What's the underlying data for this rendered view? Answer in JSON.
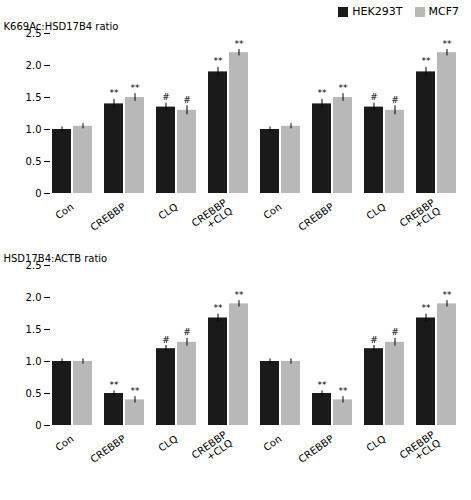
{
  "chart_data": [
    {
      "type": "bar",
      "ylabel": "K669Ac:HSD17B4 ratio",
      "categories": [
        "Con",
        "CREBBP",
        "CLQ",
        "CREBBP\n+CLQ",
        "Con",
        "CREBBP",
        "CLQ",
        "CREBBP\n+CLQ"
      ],
      "series": [
        {
          "name": "HEK293T",
          "color": "#1a1a1a",
          "values": [
            1.0,
            1.4,
            1.35,
            1.9,
            1.0,
            1.4,
            1.35,
            1.9
          ],
          "errors": [
            0.04,
            0.07,
            0.06,
            0.07,
            0.04,
            0.07,
            0.06,
            0.07
          ],
          "significance": [
            null,
            "**",
            "#",
            "**",
            null,
            "**",
            "#",
            "**"
          ]
        },
        {
          "name": "MCF7",
          "color": "#b8b8b8",
          "values": [
            1.05,
            1.5,
            1.3,
            2.2,
            1.05,
            1.5,
            1.3,
            2.2
          ],
          "errors": [
            0.04,
            0.06,
            0.07,
            0.05,
            0.04,
            0.06,
            0.07,
            0.05
          ],
          "significance": [
            null,
            "**",
            "#",
            "**",
            null,
            "**",
            "#",
            "**"
          ]
        }
      ],
      "ylim": [
        0,
        2.5
      ],
      "yticks": [
        0,
        0.5,
        {
          "value": 1.0,
          "label": "1.0"
        },
        1.5,
        {
          "value": 2.0,
          "label": "2.0"
        },
        2.5
      ],
      "legend": "upper right",
      "grid": false
    },
    {
      "type": "bar",
      "ylabel": "HSD17B4:ACTB ratio",
      "categories": [
        "Con",
        "CREBBP",
        "CLQ",
        "CREBBP\n+CLQ",
        "Con",
        "CREBBP",
        "CLQ",
        "CREBBP\n+CLQ"
      ],
      "series": [
        {
          "name": "HEK293T",
          "color": "#1a1a1a",
          "values": [
            1.0,
            0.5,
            1.2,
            1.68,
            1.0,
            0.5,
            1.2,
            1.68
          ],
          "errors": [
            0.04,
            0.04,
            0.05,
            0.06,
            0.04,
            0.04,
            0.05,
            0.06
          ],
          "significance": [
            null,
            "**",
            "#",
            "**",
            null,
            "**",
            "#",
            "**"
          ]
        },
        {
          "name": "MCF7",
          "color": "#b8b8b8",
          "values": [
            1.0,
            0.4,
            1.3,
            1.9,
            1.0,
            0.4,
            1.3,
            1.9
          ],
          "errors": [
            0.04,
            0.05,
            0.06,
            0.05,
            0.04,
            0.05,
            0.06,
            0.05
          ],
          "significance": [
            null,
            "**",
            "#",
            "**",
            null,
            "**",
            "#",
            "**"
          ]
        }
      ],
      "ylim": [
        0,
        2.5
      ],
      "yticks": [
        0,
        0.5,
        {
          "value": 1.0,
          "label": "1.0"
        },
        1.5,
        {
          "value": 2.0,
          "label": "2.0"
        },
        2.5
      ],
      "grid": false
    }
  ]
}
